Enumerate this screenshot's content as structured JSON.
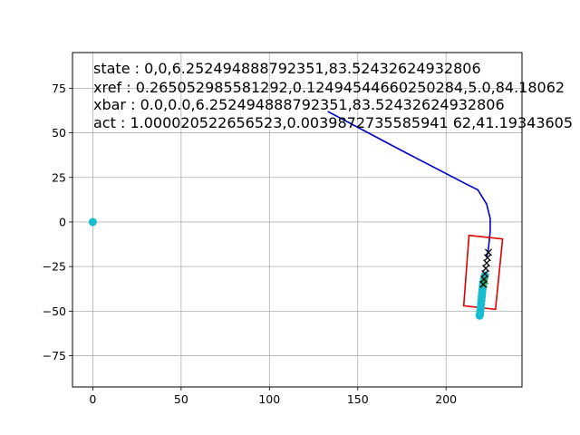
{
  "chart_data": {
    "type": "scatter",
    "title": "",
    "xlabel": "",
    "ylabel": "",
    "xlim": [
      -11.5,
      243
    ],
    "ylim": [
      -92.5,
      95
    ],
    "xticks": [
      0,
      50,
      100,
      150,
      200
    ],
    "yticks": [
      -75,
      -50,
      -25,
      0,
      25,
      50,
      75
    ],
    "grid": true,
    "annotations": [
      "state : 0,0,6.252494888792351,83.52432624932806",
      "xref : 0.265052985581292,0.12494544660250284,5.0,84.18062",
      "xbar : 0.0,0.0,6.252494888792351,83.52432624932806",
      "act : 1.000020522656523,0.0039872735585941 62,41.19343605"
    ],
    "origin_point": {
      "x": 0,
      "y": 0,
      "color": "#17becf"
    },
    "trajectory": {
      "color": "#0000cc",
      "points": [
        [
          133,
          62
        ],
        [
          175,
          40
        ],
        [
          210,
          22
        ],
        [
          218,
          18
        ],
        [
          223,
          10
        ],
        [
          225,
          2
        ],
        [
          225,
          -5
        ],
        [
          224,
          -15
        ],
        [
          223,
          -20
        ]
      ]
    },
    "vehicle_box": {
      "color": "#dd0000",
      "corners": [
        [
          213,
          -7.5
        ],
        [
          232,
          -9.5
        ],
        [
          228,
          -49
        ],
        [
          210,
          -47
        ]
      ]
    },
    "predicted_x_markers": {
      "color": "#000000",
      "points": [
        [
          224,
          -17
        ],
        [
          223.5,
          -20
        ],
        [
          223,
          -23
        ],
        [
          222.5,
          -26
        ],
        [
          222,
          -29
        ],
        [
          221.5,
          -32
        ],
        [
          221,
          -35
        ]
      ]
    },
    "reference_markers": {
      "color": "#2ca02c",
      "points": [
        [
          222,
          -33
        ],
        [
          221.5,
          -35
        ]
      ]
    },
    "history_points": {
      "color": "#17becf",
      "points": [
        [
          222,
          -30
        ],
        [
          221.5,
          -32
        ],
        [
          221,
          -34
        ],
        [
          220.8,
          -36
        ],
        [
          220.6,
          -38
        ],
        [
          220.4,
          -40
        ],
        [
          220.2,
          -42
        ],
        [
          220,
          -44
        ],
        [
          219.8,
          -46
        ],
        [
          219.6,
          -48
        ],
        [
          219.4,
          -50
        ],
        [
          219.2,
          -51.5
        ],
        [
          219,
          -52.5
        ]
      ]
    }
  }
}
